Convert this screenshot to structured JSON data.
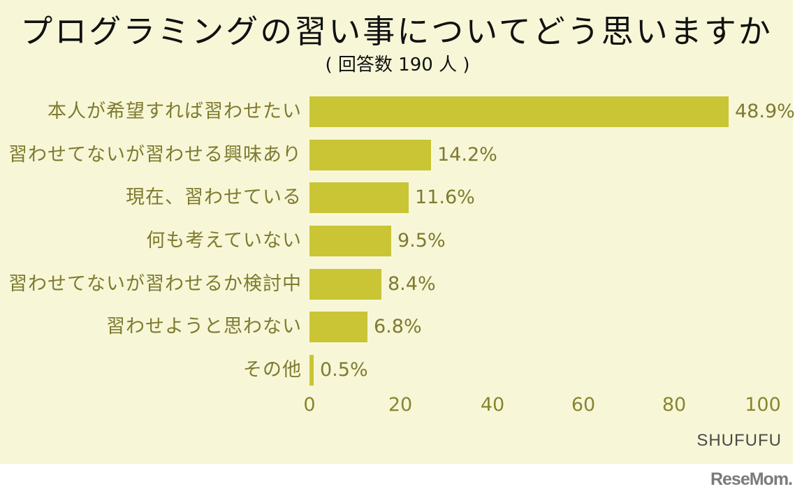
{
  "title": "プログラミングの習い事についてどう思いますか",
  "subtitle": "( 回答数 190 人 )",
  "source": "SHUFUFU",
  "logo": "ReseMom.",
  "colors": {
    "background": "#F7F7D8",
    "bar": "#C9C535",
    "label": "#7F7A2E",
    "title": "#111111"
  },
  "rows": [
    {
      "label": "本人が希望すれば習わせたい",
      "value": 48.9,
      "display": "48.9%"
    },
    {
      "label": "習わせてないが習わせる興味あり",
      "value": 14.2,
      "display": "14.2%"
    },
    {
      "label": "現在、習わせている",
      "value": 11.6,
      "display": "11.6%"
    },
    {
      "label": "何も考えていない",
      "value": 9.5,
      "display": "9.5%"
    },
    {
      "label": "習わせてないが習わせるか検討中",
      "value": 8.4,
      "display": "8.4%"
    },
    {
      "label": "習わせようと思わない",
      "value": 6.8,
      "display": "6.8%"
    },
    {
      "label": "その他",
      "value": 0.5,
      "display": "0.5%"
    }
  ],
  "axis": {
    "ticks": [
      "0",
      "20",
      "40",
      "60",
      "80",
      "100"
    ]
  },
  "chart_data": {
    "type": "bar",
    "orientation": "horizontal",
    "title": "プログラミングの習い事についてどう思いますか",
    "subtitle": "( 回答数 190 人 )",
    "categories": [
      "本人が希望すれば習わせたい",
      "習わせてないが習わせる興味あり",
      "現在、習わせている",
      "何も考えていない",
      "習わせてないが習わせるか検討中",
      "習わせようと思わない",
      "その他"
    ],
    "values": [
      48.9,
      14.2,
      11.6,
      9.5,
      8.4,
      6.8,
      0.5
    ],
    "unit": "%",
    "xlabel": "",
    "ylabel": "",
    "xticks": [
      0,
      20,
      40,
      60,
      80,
      100
    ],
    "xlim": [
      0,
      100
    ],
    "grid": false,
    "legend": null,
    "source": "SHUFUFU"
  }
}
